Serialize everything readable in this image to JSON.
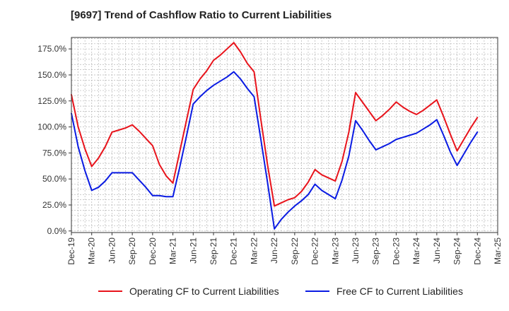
{
  "title": "[9697]  Trend of Cashflow Ratio to Current Liabilities",
  "chart_data": {
    "type": "line",
    "title": "[9697]  Trend of Cashflow Ratio to Current Liabilities",
    "xlabel": "",
    "ylabel": "",
    "ylim": [
      -1.5,
      186
    ],
    "grid": true,
    "legend_position": "bottom",
    "y_ticks": [
      "0.0%",
      "25.0%",
      "50.0%",
      "75.0%",
      "100.0%",
      "125.0%",
      "150.0%",
      "175.0%"
    ],
    "y_tick_values": [
      0,
      25,
      50,
      75,
      100,
      125,
      150,
      175
    ],
    "x_ticks": [
      "Dec-19",
      "Mar-20",
      "Jun-20",
      "Sep-20",
      "Dec-20",
      "Mar-21",
      "Jun-21",
      "Sep-21",
      "Dec-21",
      "Mar-22",
      "Jun-22",
      "Sep-22",
      "Dec-22",
      "Mar-23",
      "Jun-23",
      "Sep-23",
      "Dec-23",
      "Mar-24",
      "Jun-24",
      "Sep-24",
      "Dec-24",
      "Mar-25"
    ],
    "x": [
      "Dec-19",
      "Jan-20",
      "Feb-20",
      "Mar-20",
      "Apr-20",
      "May-20",
      "Jun-20",
      "Jul-20",
      "Aug-20",
      "Sep-20",
      "Oct-20",
      "Nov-20",
      "Dec-20",
      "Jan-21",
      "Feb-21",
      "Mar-21",
      "Apr-21",
      "May-21",
      "Jun-21",
      "Jul-21",
      "Aug-21",
      "Sep-21",
      "Oct-21",
      "Nov-21",
      "Dec-21",
      "Jan-22",
      "Feb-22",
      "Mar-22",
      "Apr-22",
      "May-22",
      "Jun-22",
      "Jul-22",
      "Aug-22",
      "Sep-22",
      "Oct-22",
      "Nov-22",
      "Dec-22",
      "Jan-23",
      "Feb-23",
      "Mar-23",
      "Apr-23",
      "May-23",
      "Jun-23",
      "Jul-23",
      "Aug-23",
      "Sep-23",
      "Oct-23",
      "Nov-23",
      "Dec-23",
      "Jan-24",
      "Feb-24",
      "Mar-24",
      "Apr-24",
      "May-24",
      "Jun-24",
      "Jul-24",
      "Aug-24",
      "Sep-24",
      "Oct-24",
      "Nov-24",
      "Dec-24"
    ],
    "series": [
      {
        "name": "Operating CF to Current Liabilities",
        "color": "#e8131b",
        "values": [
          131,
          100,
          79,
          62,
          70,
          81,
          95,
          97,
          99,
          102,
          96,
          89,
          82,
          64,
          53,
          46,
          76,
          106,
          136,
          146,
          154,
          164,
          169,
          175,
          181,
          172,
          161,
          153,
          107,
          63,
          24,
          27,
          30,
          32,
          38,
          47,
          59,
          54,
          51,
          48,
          67,
          95,
          133,
          124,
          115,
          106,
          111,
          117,
          124,
          119,
          115,
          112,
          116,
          121,
          126,
          110,
          93,
          77,
          88,
          99,
          109
        ]
      },
      {
        "name": "Free CF to Current Liabilities",
        "color": "#0a1be3",
        "values": [
          113,
          81,
          58,
          39,
          42,
          48,
          56,
          56,
          56,
          56,
          49,
          42,
          34,
          34,
          33,
          33,
          61,
          91,
          122,
          129,
          135,
          140,
          144,
          148,
          153,
          146,
          137,
          129,
          88,
          46,
          2,
          11,
          18,
          24,
          29,
          35,
          45,
          39,
          35,
          31,
          49,
          72,
          106,
          97,
          87,
          78,
          81,
          84,
          88,
          90,
          92,
          94,
          98,
          102,
          107,
          92,
          76,
          63,
          74,
          85,
          95
        ]
      }
    ]
  }
}
